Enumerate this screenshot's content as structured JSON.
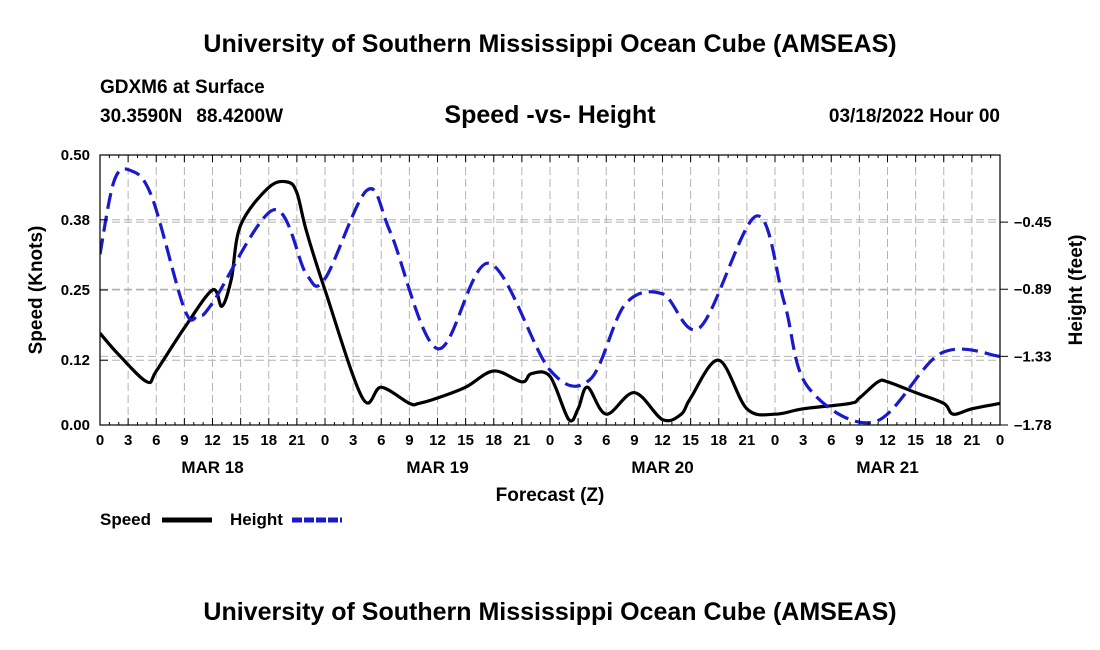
{
  "header": {
    "title": "University of Southern Mississippi Ocean Cube (AMSEAS)",
    "station": "GDXM6 at Surface",
    "latitude": "30.3590N",
    "longitude": "88.4200W",
    "datetime": "03/18/2022 Hour 00"
  },
  "footer": {
    "title": "University of Southern Mississippi Ocean Cube (AMSEAS)"
  },
  "chart_data": {
    "type": "line",
    "title": "Speed -vs- Height",
    "xlabel": "Forecast (Z)",
    "ylabel": "Speed (Knots)",
    "y2label": "Height (feet)",
    "x_tick_hours": [
      0,
      3,
      6,
      9,
      12,
      15,
      18,
      21,
      24,
      27,
      30,
      33,
      36,
      39,
      42,
      45,
      48,
      51,
      54,
      57,
      60,
      63,
      66,
      69,
      72,
      75,
      78,
      81,
      84,
      87,
      90,
      93,
      96
    ],
    "x_tick_labels": [
      "0",
      "3",
      "6",
      "9",
      "12",
      "15",
      "18",
      "21",
      "0",
      "3",
      "6",
      "9",
      "12",
      "15",
      "18",
      "21",
      "0",
      "3",
      "6",
      "9",
      "12",
      "15",
      "18",
      "21",
      "0",
      "3",
      "6",
      "9",
      "12",
      "15",
      "18",
      "21",
      "0"
    ],
    "day_labels": [
      {
        "label": "MAR 18",
        "hour": 12
      },
      {
        "label": "MAR 19",
        "hour": 36
      },
      {
        "label": "MAR 20",
        "hour": 60
      },
      {
        "label": "MAR 21",
        "hour": 84
      }
    ],
    "xlim": [
      0,
      96
    ],
    "ylim": [
      0,
      0.5
    ],
    "yticks": [
      0.0,
      0.12,
      0.25,
      0.38,
      0.5
    ],
    "ytick_labels": [
      "0.00",
      "0.12",
      "0.25",
      "0.38",
      "0.50"
    ],
    "y2lim": [
      -1.78,
      -0.01
    ],
    "y2ticks": [
      -1.78,
      -1.33,
      -0.89,
      -0.45
    ],
    "y2tick_labels": [
      "-1.78",
      "-1.33",
      "-0.89",
      "-0.45"
    ],
    "grid": true,
    "legend": [
      {
        "name": "Speed",
        "color": "#000000",
        "dash": "solid"
      },
      {
        "name": "Height",
        "color": "#1a1acc",
        "dash": "dashed"
      }
    ],
    "series": [
      {
        "name": "Speed",
        "axis": "left",
        "color": "#000000",
        "hours": [
          0,
          2,
          5,
          6,
          9,
          12,
          13,
          14,
          15,
          18,
          20,
          21,
          22,
          24,
          28,
          30,
          33,
          34,
          36,
          39,
          42,
          45,
          46,
          48,
          50,
          51,
          52,
          54,
          57,
          60,
          62,
          63,
          66,
          69,
          72,
          75,
          80,
          81,
          83,
          84,
          87,
          90,
          91,
          93,
          96
        ],
        "values": [
          0.17,
          0.13,
          0.08,
          0.1,
          0.18,
          0.25,
          0.22,
          0.27,
          0.37,
          0.44,
          0.45,
          0.43,
          0.36,
          0.25,
          0.05,
          0.07,
          0.04,
          0.04,
          0.05,
          0.07,
          0.1,
          0.08,
          0.095,
          0.09,
          0.01,
          0.03,
          0.07,
          0.02,
          0.06,
          0.01,
          0.02,
          0.05,
          0.12,
          0.03,
          0.02,
          0.03,
          0.04,
          0.05,
          0.08,
          0.08,
          0.06,
          0.04,
          0.02,
          0.03,
          0.04
        ]
      },
      {
        "name": "Height",
        "axis": "right",
        "color": "#1a1acc",
        "hours": [
          0,
          1.5,
          3.2,
          5.5,
          9,
          10.5,
          12,
          18.5,
          22,
          24,
          28.5,
          31,
          36,
          41.5,
          48,
          52.3,
          56,
          60,
          64,
          70,
          73,
          75.5,
          82.6,
          89.7,
          96
        ],
        "values": [
          -0.66,
          -0.18,
          -0.11,
          -0.28,
          -1.02,
          -1.06,
          -0.98,
          -0.37,
          -0.79,
          -0.82,
          -0.24,
          -0.52,
          -1.28,
          -0.72,
          -1.42,
          -1.48,
          -0.99,
          -0.92,
          -1.14,
          -0.41,
          -0.98,
          -1.53,
          -1.76,
          -1.31,
          -1.33
        ]
      }
    ]
  }
}
